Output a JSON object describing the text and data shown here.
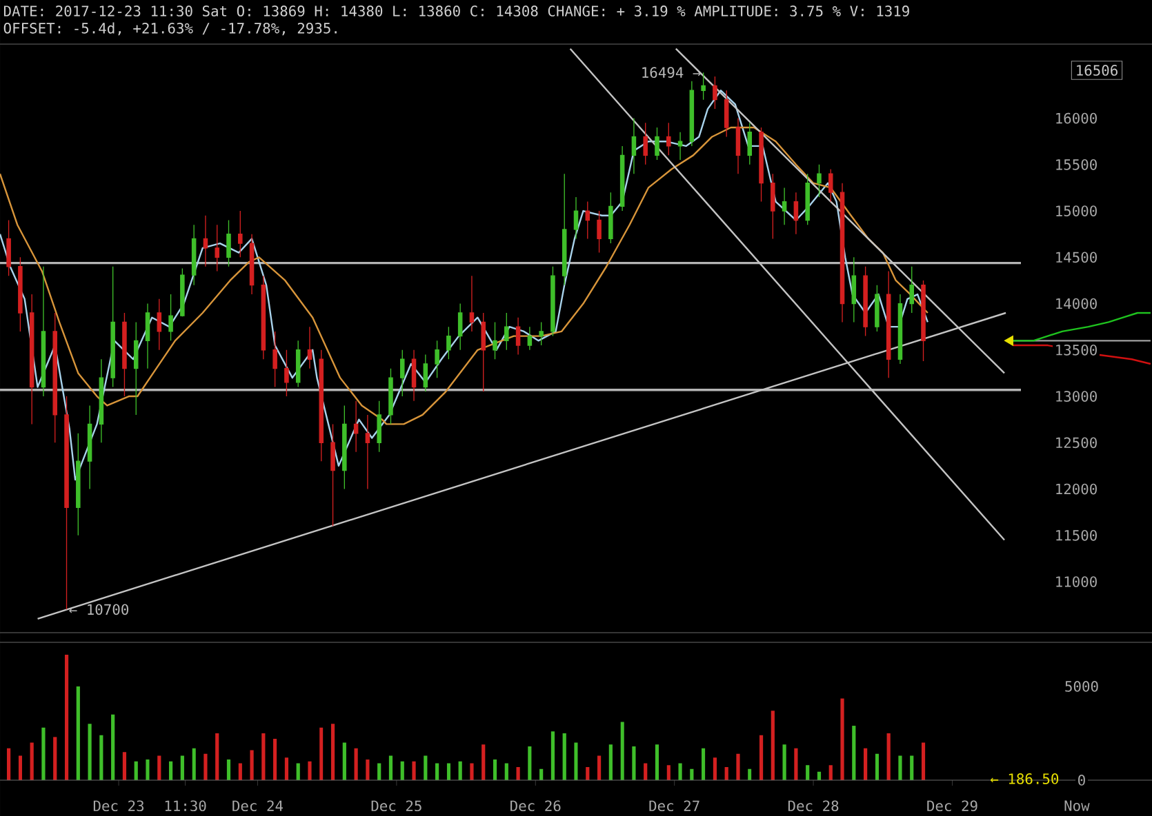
{
  "chart_data": [
    {
      "type": "candlestick",
      "title": "DATE: 2017-12-23 11:30 Sat O: 13869 H: 14380 L: 13860 C: 14308 CHANGE: + 3.19 % AMPLITUDE: 3.75 % V: 1319",
      "subtitle": "OFFSET: -5.4d, +21.63% / -17.78%, 2935.",
      "xlim": [
        "2017-12-22T03:30",
        "2017-12-30T10:30"
      ],
      "ylim": [
        10450,
        16800
      ],
      "yticks": [
        11000,
        11500,
        12000,
        12500,
        13000,
        13500,
        14000,
        14500,
        15000,
        15500,
        16000
      ],
      "tick_labels": "y",
      "x": [
        "2017-12-22T05:00",
        "2017-12-22T07:00",
        "2017-12-22T09:00",
        "2017-12-22T11:00",
        "2017-12-22T13:00",
        "2017-12-22T15:00",
        "2017-12-22T17:00",
        "2017-12-22T19:00",
        "2017-12-22T21:00",
        "2017-12-22T23:00",
        "2017-12-23T01:00",
        "2017-12-23T03:00",
        "2017-12-23T05:00",
        "2017-12-23T07:00",
        "2017-12-23T09:00",
        "2017-12-23T11:00",
        "2017-12-23T13:00",
        "2017-12-23T15:00",
        "2017-12-23T17:00",
        "2017-12-23T19:00",
        "2017-12-23T21:00",
        "2017-12-23T23:00",
        "2017-12-24T01:00",
        "2017-12-24T03:00",
        "2017-12-24T05:00",
        "2017-12-24T07:00",
        "2017-12-24T09:00",
        "2017-12-24T11:00",
        "2017-12-24T13:00",
        "2017-12-24T15:00",
        "2017-12-24T17:00",
        "2017-12-24T19:00",
        "2017-12-24T21:00",
        "2017-12-24T23:00",
        "2017-12-25T01:00",
        "2017-12-25T03:00",
        "2017-12-25T05:00",
        "2017-12-25T07:00",
        "2017-12-25T09:00",
        "2017-12-25T11:00",
        "2017-12-25T13:00",
        "2017-12-25T15:00",
        "2017-12-25T17:00",
        "2017-12-25T19:00",
        "2017-12-25T21:00",
        "2017-12-25T23:00",
        "2017-12-26T01:00",
        "2017-12-26T03:00",
        "2017-12-26T05:00",
        "2017-12-26T07:00",
        "2017-12-26T09:00",
        "2017-12-26T11:00",
        "2017-12-26T13:00",
        "2017-12-26T15:00",
        "2017-12-26T17:00",
        "2017-12-26T19:00",
        "2017-12-26T21:00",
        "2017-12-26T23:00",
        "2017-12-27T01:00",
        "2017-12-27T03:00",
        "2017-12-27T05:00",
        "2017-12-27T07:00",
        "2017-12-27T09:00",
        "2017-12-27T11:00",
        "2017-12-27T13:00",
        "2017-12-27T15:00",
        "2017-12-27T17:00",
        "2017-12-27T19:00",
        "2017-12-27T21:00",
        "2017-12-27T23:00",
        "2017-12-28T01:00",
        "2017-12-28T03:00",
        "2017-12-28T05:00",
        "2017-12-28T07:00",
        "2017-12-28T09:00",
        "2017-12-28T11:00",
        "2017-12-28T13:00",
        "2017-12-28T15:00",
        "2017-12-28T17:00",
        "2017-12-28T19:00"
      ],
      "ohlc": [
        [
          14700,
          14900,
          14300,
          14400
        ],
        [
          14400,
          14500,
          13700,
          13900
        ],
        [
          13900,
          14100,
          12700,
          13100
        ],
        [
          13100,
          14400,
          13000,
          13700
        ],
        [
          13700,
          13900,
          12500,
          12800
        ],
        [
          12800,
          13000,
          10700,
          11800
        ],
        [
          11800,
          12600,
          11500,
          12300
        ],
        [
          12300,
          12900,
          12000,
          12700
        ],
        [
          12700,
          13400,
          12500,
          13200
        ],
        [
          13200,
          14400,
          13100,
          13800
        ],
        [
          13800,
          13900,
          13000,
          13300
        ],
        [
          13300,
          13800,
          12800,
          13600
        ],
        [
          13600,
          14000,
          13300,
          13900
        ],
        [
          13900,
          14050,
          13500,
          13700
        ],
        [
          13700,
          14100,
          13600,
          13869
        ],
        [
          13869,
          14380,
          13860,
          14308
        ],
        [
          14308,
          14850,
          14200,
          14700
        ],
        [
          14700,
          14950,
          14400,
          14600
        ],
        [
          14600,
          14850,
          14350,
          14500
        ],
        [
          14500,
          14900,
          14400,
          14750
        ],
        [
          14750,
          15000,
          14500,
          14650
        ],
        [
          14650,
          14750,
          14100,
          14200
        ],
        [
          14200,
          14300,
          13400,
          13500
        ],
        [
          13500,
          13700,
          13100,
          13300
        ],
        [
          13300,
          13500,
          13000,
          13150
        ],
        [
          13150,
          13600,
          13100,
          13500
        ],
        [
          13500,
          13750,
          13300,
          13400
        ],
        [
          13400,
          13500,
          12300,
          12500
        ],
        [
          12500,
          12700,
          11600,
          12200
        ],
        [
          12200,
          12900,
          12000,
          12700
        ],
        [
          12700,
          12950,
          12400,
          12600
        ],
        [
          12600,
          12800,
          12000,
          12500
        ],
        [
          12500,
          12950,
          12400,
          12800
        ],
        [
          12800,
          13300,
          12700,
          13200
        ],
        [
          13200,
          13500,
          13000,
          13400
        ],
        [
          13400,
          13500,
          12950,
          13100
        ],
        [
          13100,
          13450,
          13050,
          13350
        ],
        [
          13350,
          13600,
          13200,
          13500
        ],
        [
          13500,
          13750,
          13400,
          13650
        ],
        [
          13650,
          14000,
          13500,
          13900
        ],
        [
          13900,
          14300,
          13700,
          13800
        ],
        [
          13800,
          13900,
          13050,
          13500
        ],
        [
          13500,
          13800,
          13400,
          13600
        ],
        [
          13600,
          13900,
          13500,
          13750
        ],
        [
          13750,
          13850,
          13450,
          13550
        ],
        [
          13550,
          13750,
          13500,
          13650
        ],
        [
          13650,
          13800,
          13550,
          13700
        ],
        [
          13700,
          14400,
          13650,
          14300
        ],
        [
          14300,
          15400,
          14200,
          14800
        ],
        [
          14800,
          15150,
          14700,
          15000
        ],
        [
          15000,
          15100,
          14700,
          14900
        ],
        [
          14900,
          15000,
          14550,
          14700
        ],
        [
          14700,
          15200,
          14650,
          15050
        ],
        [
          15050,
          15700,
          15000,
          15600
        ],
        [
          15600,
          16000,
          15400,
          15800
        ],
        [
          15800,
          15950,
          15500,
          15600
        ],
        [
          15600,
          15900,
          15550,
          15800
        ],
        [
          15800,
          15950,
          15600,
          15700
        ],
        [
          15700,
          15850,
          15550,
          15750
        ],
        [
          15750,
          16400,
          15700,
          16300
        ],
        [
          16300,
          16494,
          16200,
          16350
        ],
        [
          16350,
          16450,
          16100,
          16200
        ],
        [
          16200,
          16300,
          15800,
          15900
        ],
        [
          15900,
          16000,
          15400,
          15600
        ],
        [
          15600,
          15950,
          15500,
          15850
        ],
        [
          15850,
          15900,
          15100,
          15300
        ],
        [
          15300,
          15400,
          14700,
          15000
        ],
        [
          15000,
          15250,
          14850,
          15100
        ],
        [
          15100,
          15200,
          14750,
          14900
        ],
        [
          14900,
          15400,
          14850,
          15300
        ],
        [
          15300,
          15500,
          15150,
          15400
        ],
        [
          15400,
          15450,
          15100,
          15200
        ],
        [
          15200,
          15300,
          13800,
          14000
        ],
        [
          14000,
          14500,
          13800,
          14300
        ],
        [
          14300,
          14400,
          13650,
          13750
        ],
        [
          13750,
          14200,
          13700,
          14100
        ],
        [
          14100,
          14350,
          13200,
          13400
        ],
        [
          13400,
          14100,
          13350,
          14000
        ],
        [
          14000,
          14400,
          13900,
          14200
        ],
        [
          14200,
          14250,
          13380,
          13600
        ]
      ],
      "colors": [
        "#d42020",
        "#d42020",
        "#d42020",
        "#3fbf2a",
        "#d42020",
        "#d42020",
        "#3fbf2a",
        "#3fbf2a",
        "#3fbf2a",
        "#3fbf2a",
        "#d42020",
        "#3fbf2a",
        "#3fbf2a",
        "#d42020",
        "#3fbf2a",
        "#3fbf2a",
        "#3fbf2a",
        "#d42020",
        "#d42020",
        "#3fbf2a",
        "#d42020",
        "#d42020",
        "#d42020",
        "#d42020",
        "#d42020",
        "#3fbf2a",
        "#d42020",
        "#d42020",
        "#d42020",
        "#3fbf2a",
        "#d42020",
        "#d42020",
        "#3fbf2a",
        "#3fbf2a",
        "#3fbf2a",
        "#d42020",
        "#3fbf2a",
        "#3fbf2a",
        "#3fbf2a",
        "#3fbf2a",
        "#d42020",
        "#d42020",
        "#3fbf2a",
        "#3fbf2a",
        "#d42020",
        "#3fbf2a",
        "#3fbf2a",
        "#3fbf2a",
        "#3fbf2a",
        "#3fbf2a",
        "#d42020",
        "#d42020",
        "#3fbf2a",
        "#3fbf2a",
        "#3fbf2a",
        "#d42020",
        "#3fbf2a",
        "#d42020",
        "#3fbf2a",
        "#3fbf2a",
        "#3fbf2a",
        "#d42020",
        "#d42020",
        "#d42020",
        "#3fbf2a",
        "#d42020",
        "#d42020",
        "#3fbf2a",
        "#d42020",
        "#3fbf2a",
        "#3fbf2a",
        "#d42020",
        "#d42020",
        "#3fbf2a",
        "#d42020",
        "#3fbf2a",
        "#d42020",
        "#3fbf2a",
        "#3fbf2a",
        "#d42020"
      ],
      "series": [
        {
          "type": "line",
          "color": "#a9d3ec",
          "x": [
            "2017-12-22T03:30",
            "2017-12-22T05:15",
            "2017-12-22T07:45",
            "2017-12-22T10:00",
            "2017-12-22T13:00",
            "2017-12-22T15:30",
            "2017-12-22T16:30",
            "2017-12-22T20:15",
            "2017-12-22T23:15",
            "2017-12-23T02:30",
            "2017-12-23T05:45",
            "2017-12-23T08:45",
            "2017-12-23T11:15",
            "2017-12-23T14:30",
            "2017-12-23T17:30",
            "2017-12-23T20:45",
            "2017-12-23T23:00",
            "2017-12-24T01:30",
            "2017-12-24T03:00",
            "2017-12-24T06:00",
            "2017-12-24T09:30",
            "2017-12-24T10:15",
            "2017-12-24T14:00",
            "2017-12-24T17:30",
            "2017-12-24T19:45",
            "2017-12-24T22:45",
            "2017-12-25T02:30",
            "2017-12-25T05:00",
            "2017-12-25T07:45",
            "2017-12-25T10:45",
            "2017-12-25T14:00",
            "2017-12-25T17:15",
            "2017-12-25T19:30",
            "2017-12-25T22:00",
            "2017-12-26T00:30",
            "2017-12-26T03:30",
            "2017-12-26T05:00",
            "2017-12-26T06:45",
            "2017-12-26T08:15",
            "2017-12-26T11:30",
            "2017-12-26T13:00",
            "2017-12-26T15:00",
            "2017-12-26T17:00",
            "2017-12-26T19:30",
            "2017-12-26T22:30",
            "2017-12-27T02:00",
            "2017-12-27T04:15",
            "2017-12-27T05:45",
            "2017-12-27T08:00",
            "2017-12-27T10:30",
            "2017-12-27T12:45",
            "2017-12-27T15:15",
            "2017-12-27T17:30",
            "2017-12-27T21:00",
            "2017-12-27T23:15",
            "2017-12-28T02:30",
            "2017-12-28T04:00",
            "2017-12-28T05:30",
            "2017-12-28T06:45",
            "2017-12-28T09:00",
            "2017-12-28T11:15",
            "2017-12-28T13:00",
            "2017-12-28T14:45",
            "2017-12-28T16:15",
            "2017-12-28T18:00",
            "2017-12-28T19:45"
          ],
          "values": [
            14750,
            14400,
            14050,
            13100,
            13550,
            12650,
            12100,
            12700,
            13600,
            13400,
            13850,
            13750,
            14000,
            14600,
            14650,
            14550,
            14700,
            14200,
            13550,
            13200,
            13500,
            13200,
            12250,
            12750,
            12550,
            12800,
            13350,
            13150,
            13400,
            13650,
            13850,
            13500,
            13750,
            13700,
            13600,
            13700,
            14200,
            14700,
            15000,
            14950,
            14950,
            15100,
            15650,
            15750,
            15750,
            15700,
            15800,
            16100,
            16300,
            16150,
            15700,
            15700,
            15100,
            14900,
            15050,
            15300,
            15100,
            14500,
            14100,
            13900,
            14100,
            13750,
            13750,
            14050,
            14100,
            13800
          ]
        },
        {
          "type": "line",
          "color": "#d8953a",
          "x": [
            "2017-12-22T03:30",
            "2017-12-22T06:30",
            "2017-12-22T10:45",
            "2017-12-22T13:45",
            "2017-12-22T17:00",
            "2017-12-22T20:15",
            "2017-12-22T22:00",
            "2017-12-23T01:45",
            "2017-12-23T03:15",
            "2017-12-23T06:30",
            "2017-12-23T09:45",
            "2017-12-23T14:30",
            "2017-12-23T19:15",
            "2017-12-23T22:30",
            "2017-12-24T00:15",
            "2017-12-24T04:45",
            "2017-12-24T09:30",
            "2017-12-24T14:15",
            "2017-12-24T18:00",
            "2017-12-24T21:30",
            "2017-12-24T22:15",
            "2017-12-25T01:15",
            "2017-12-25T04:30",
            "2017-12-25T08:30",
            "2017-12-25T14:00",
            "2017-12-25T20:15",
            "2017-12-26T01:00",
            "2017-12-26T04:30",
            "2017-12-26T08:15",
            "2017-12-26T12:15",
            "2017-12-26T16:15",
            "2017-12-26T19:30",
            "2017-12-26T23:30",
            "2017-12-27T03:15",
            "2017-12-27T06:30",
            "2017-12-27T09:45",
            "2017-12-27T13:45",
            "2017-12-27T17:30",
            "2017-12-27T21:00",
            "2017-12-28T00:00",
            "2017-12-28T03:00",
            "2017-12-28T06:30",
            "2017-12-28T09:30",
            "2017-12-28T12:00",
            "2017-12-28T14:15",
            "2017-12-28T16:45",
            "2017-12-28T19:45"
          ],
          "values": [
            15400,
            14850,
            14350,
            13800,
            13250,
            13000,
            12900,
            13000,
            13000,
            13300,
            13600,
            13900,
            14250,
            14450,
            14500,
            14250,
            13850,
            13200,
            12900,
            12750,
            12700,
            12700,
            12800,
            13050,
            13500,
            13650,
            13650,
            13700,
            14000,
            14400,
            14850,
            15250,
            15450,
            15600,
            15800,
            15900,
            15900,
            15750,
            15500,
            15300,
            15250,
            14950,
            14700,
            14550,
            14250,
            14100,
            13900
          ]
        },
        {
          "type": "line",
          "color": "#c4c4c4",
          "x": [
            "2017-12-22T10:00",
            "2017-12-29T09:15"
          ],
          "values": [
            10600,
            13900
          ]
        },
        {
          "type": "line",
          "color": "#c4c4c4",
          "x": [
            "2017-12-27T00:15",
            "2017-12-29T09:00"
          ],
          "values": [
            16750,
            13250
          ]
        },
        {
          "type": "line",
          "color": "#c4c4c4",
          "x": [
            "2017-12-26T06:00",
            "2017-12-29T09:00"
          ],
          "values": [
            16750,
            11450
          ]
        },
        {
          "type": "line",
          "color": "#a0a0a0",
          "x": [
            "2017-12-29T10:30",
            "2017-12-30T10:15"
          ],
          "values": [
            13600,
            13600
          ]
        },
        {
          "type": "line",
          "color": "#1fc31f",
          "x": [
            "2017-12-29T10:30",
            "2017-12-29T14:00",
            "2017-12-29T19:00",
            "2017-12-29T23:30",
            "2017-12-30T03:00",
            "2017-12-30T05:30",
            "2017-12-30T08:00",
            "2017-12-30T10:15"
          ],
          "values": [
            13600,
            13600,
            13700,
            13750,
            13800,
            13850,
            13900,
            13900
          ]
        },
        {
          "type": "line",
          "color": "#d01010",
          "x": [
            "2017-12-29T10:30",
            "2017-12-29T16:30",
            "2017-12-30T01:00",
            "2017-12-30T07:00",
            "2017-12-30T10:15"
          ],
          "values": [
            13550,
            13550,
            13450,
            13400,
            13350
          ]
        },
        {
          "type": "scatter",
          "color": "#e8e000",
          "marker": "triangle",
          "x": [
            "2017-12-29T10:00"
          ],
          "values": [
            13600
          ]
        }
      ],
      "ref_lines": [
        {
          "axis": "y",
          "value": 14438,
          "color": "#b4b4b4"
        },
        {
          "axis": "y",
          "value": 13069,
          "color": "#b4b4b4"
        }
      ],
      "annotations": [
        "16506",
        {
          "text": "16494 →",
          "x": "2017-12-27T05:00",
          "y": 16494
        },
        {
          "text": "← 10700",
          "x": "2017-12-22T15:00",
          "y": 10700
        }
      ]
    },
    {
      "type": "bar",
      "xlim": [
        "2017-12-22T03:30",
        "2017-12-30T10:30"
      ],
      "ylim": [
        0,
        7350
      ],
      "yticks": [
        0,
        5000
      ],
      "xticks": [
        {
          "value": "2017-12-23",
          "label": "Dec 23"
        },
        {
          "value": "2017-12-23T11:30",
          "label": "11:30"
        },
        {
          "value": "2017-12-24",
          "label": "Dec 24"
        },
        {
          "value": "2017-12-25",
          "label": "Dec 25"
        },
        {
          "value": "2017-12-26",
          "label": "Dec 26"
        },
        {
          "value": "2017-12-27",
          "label": "Dec 27"
        },
        {
          "value": "2017-12-28",
          "label": "Dec 28"
        },
        {
          "value": "2017-12-29",
          "label": "Dec 29"
        },
        {
          "value": "2017-12-29T21:30",
          "label": "Now"
        }
      ],
      "x": [
        "2017-12-22T05:00",
        "2017-12-22T07:00",
        "2017-12-22T09:00",
        "2017-12-22T11:00",
        "2017-12-22T13:00",
        "2017-12-22T15:00",
        "2017-12-22T17:00",
        "2017-12-22T19:00",
        "2017-12-22T21:00",
        "2017-12-22T23:00",
        "2017-12-23T01:00",
        "2017-12-23T03:00",
        "2017-12-23T05:00",
        "2017-12-23T07:00",
        "2017-12-23T09:00",
        "2017-12-23T11:00",
        "2017-12-23T13:00",
        "2017-12-23T15:00",
        "2017-12-23T17:00",
        "2017-12-23T19:00",
        "2017-12-23T21:00",
        "2017-12-23T23:00",
        "2017-12-24T01:00",
        "2017-12-24T03:00",
        "2017-12-24T05:00",
        "2017-12-24T07:00",
        "2017-12-24T09:00",
        "2017-12-24T11:00",
        "2017-12-24T13:00",
        "2017-12-24T15:00",
        "2017-12-24T17:00",
        "2017-12-24T19:00",
        "2017-12-24T21:00",
        "2017-12-24T23:00",
        "2017-12-25T01:00",
        "2017-12-25T03:00",
        "2017-12-25T05:00",
        "2017-12-25T07:00",
        "2017-12-25T09:00",
        "2017-12-25T11:00",
        "2017-12-25T13:00",
        "2017-12-25T15:00",
        "2017-12-25T17:00",
        "2017-12-25T19:00",
        "2017-12-25T21:00",
        "2017-12-25T23:00",
        "2017-12-26T01:00",
        "2017-12-26T03:00",
        "2017-12-26T05:00",
        "2017-12-26T07:00",
        "2017-12-26T09:00",
        "2017-12-26T11:00",
        "2017-12-26T13:00",
        "2017-12-26T15:00",
        "2017-12-26T17:00",
        "2017-12-26T19:00",
        "2017-12-26T21:00",
        "2017-12-26T23:00",
        "2017-12-27T01:00",
        "2017-12-27T03:00",
        "2017-12-27T05:00",
        "2017-12-27T07:00",
        "2017-12-27T09:00",
        "2017-12-27T11:00",
        "2017-12-27T13:00",
        "2017-12-27T15:00",
        "2017-12-27T17:00",
        "2017-12-27T19:00",
        "2017-12-27T21:00",
        "2017-12-27T23:00",
        "2017-12-28T01:00",
        "2017-12-28T03:00",
        "2017-12-28T05:00",
        "2017-12-28T07:00",
        "2017-12-28T09:00",
        "2017-12-28T11:00",
        "2017-12-28T13:00",
        "2017-12-28T15:00",
        "2017-12-28T17:00",
        "2017-12-28T19:00"
      ],
      "values": [
        1700,
        1300,
        2000,
        2800,
        2300,
        6690,
        5000,
        3000,
        2400,
        3500,
        1500,
        1000,
        1100,
        1300,
        1000,
        1300,
        1700,
        1400,
        2500,
        1100,
        900,
        1600,
        2500,
        2200,
        1200,
        900,
        1000,
        2800,
        3000,
        2000,
        1700,
        1100,
        900,
        1300,
        1000,
        1000,
        1300,
        900,
        900,
        1000,
        900,
        1900,
        1100,
        900,
        700,
        1800,
        600,
        2600,
        2500,
        2000,
        700,
        1300,
        1900,
        3100,
        1800,
        900,
        1900,
        800,
        900,
        600,
        1700,
        1200,
        700,
        1400,
        600,
        2400,
        3700,
        1900,
        1700,
        800,
        450,
        800,
        4350,
        2900,
        1700,
        1400,
        2500,
        1300,
        1300,
        2000
      ],
      "colors": [
        "#d42020",
        "#d42020",
        "#d42020",
        "#3fbf2a",
        "#d42020",
        "#d42020",
        "#3fbf2a",
        "#3fbf2a",
        "#3fbf2a",
        "#3fbf2a",
        "#d42020",
        "#3fbf2a",
        "#3fbf2a",
        "#d42020",
        "#3fbf2a",
        "#3fbf2a",
        "#3fbf2a",
        "#d42020",
        "#d42020",
        "#3fbf2a",
        "#d42020",
        "#d42020",
        "#d42020",
        "#d42020",
        "#d42020",
        "#3fbf2a",
        "#d42020",
        "#d42020",
        "#d42020",
        "#3fbf2a",
        "#d42020",
        "#d42020",
        "#3fbf2a",
        "#3fbf2a",
        "#3fbf2a",
        "#d42020",
        "#3fbf2a",
        "#3fbf2a",
        "#3fbf2a",
        "#3fbf2a",
        "#d42020",
        "#d42020",
        "#3fbf2a",
        "#3fbf2a",
        "#d42020",
        "#3fbf2a",
        "#3fbf2a",
        "#3fbf2a",
        "#3fbf2a",
        "#3fbf2a",
        "#d42020",
        "#d42020",
        "#3fbf2a",
        "#3fbf2a",
        "#3fbf2a",
        "#d42020",
        "#3fbf2a",
        "#d42020",
        "#3fbf2a",
        "#3fbf2a",
        "#3fbf2a",
        "#d42020",
        "#d42020",
        "#d42020",
        "#3fbf2a",
        "#d42020",
        "#d42020",
        "#3fbf2a",
        "#d42020",
        "#3fbf2a",
        "#3fbf2a",
        "#d42020",
        "#d42020",
        "#3fbf2a",
        "#d42020",
        "#3fbf2a",
        "#d42020",
        "#3fbf2a",
        "#3fbf2a",
        "#d42020"
      ],
      "annotations": [
        "← 186.50"
      ]
    }
  ]
}
